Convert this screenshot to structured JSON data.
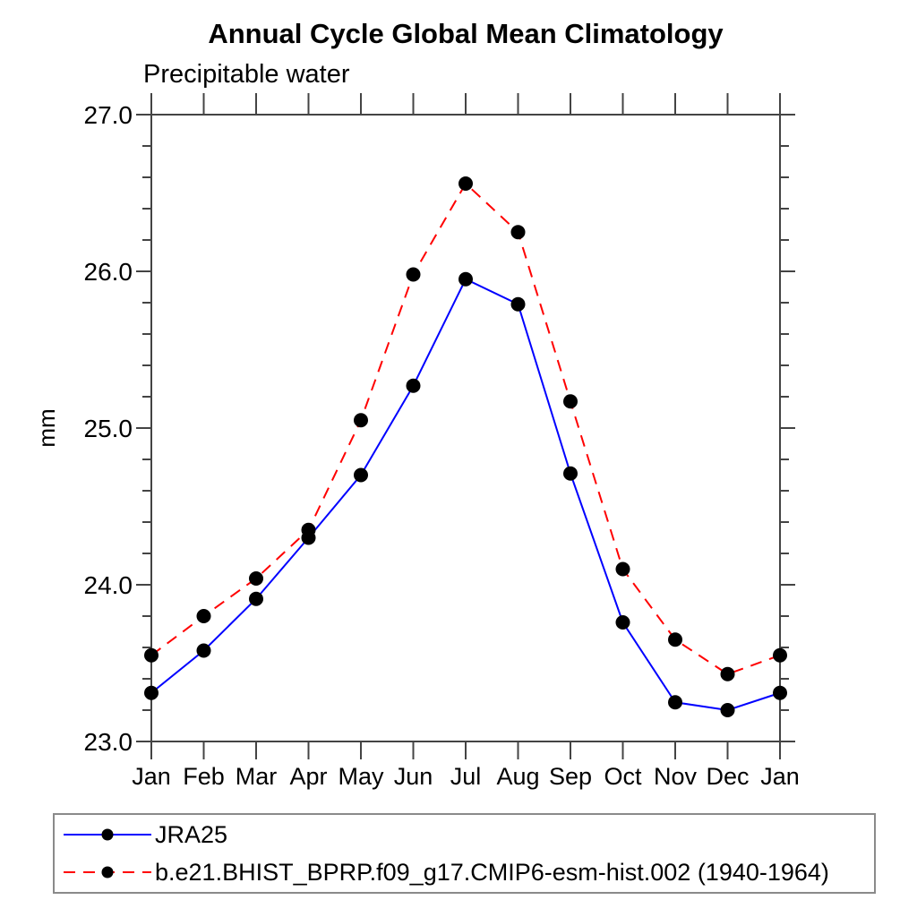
{
  "chart_data": {
    "type": "line",
    "title": "Annual Cycle Global Mean Climatology",
    "subtitle": "Precipitable water",
    "ylabel": "mm",
    "x_categories": [
      "Jan",
      "Feb",
      "Mar",
      "Apr",
      "May",
      "Jun",
      "Jul",
      "Aug",
      "Sep",
      "Oct",
      "Nov",
      "Dec",
      "Jan"
    ],
    "ylim": [
      23.0,
      27.0
    ],
    "ytick_major_step": 1.0,
    "ytick_minor_step": 0.2,
    "ytick_labels": [
      "23.0",
      "24.0",
      "25.0",
      "26.0",
      "27.0"
    ],
    "grid": false,
    "legend_position": "bottom-box",
    "series": [
      {
        "name": "JRA25",
        "color": "#0000ff",
        "line_style": "solid",
        "marker": "filled-black-circle",
        "values": [
          23.31,
          23.58,
          23.91,
          24.3,
          24.7,
          25.27,
          25.95,
          25.79,
          24.71,
          23.76,
          23.25,
          23.2,
          23.31
        ]
      },
      {
        "name": "b.e21.BHIST_BPRP.f09_g17.CMIP6-esm-hist.002 (1940-1964)",
        "color": "#ff0000",
        "line_style": "dashed",
        "marker": "filled-black-circle",
        "values": [
          23.55,
          23.8,
          24.04,
          24.35,
          25.05,
          25.98,
          26.56,
          26.25,
          25.17,
          24.1,
          23.65,
          23.43,
          23.55
        ]
      }
    ]
  },
  "colors": {
    "axis": "#444444",
    "text": "#000000",
    "marker": "#000000",
    "legend_border": "#8a8a8a",
    "background": "#ffffff"
  }
}
